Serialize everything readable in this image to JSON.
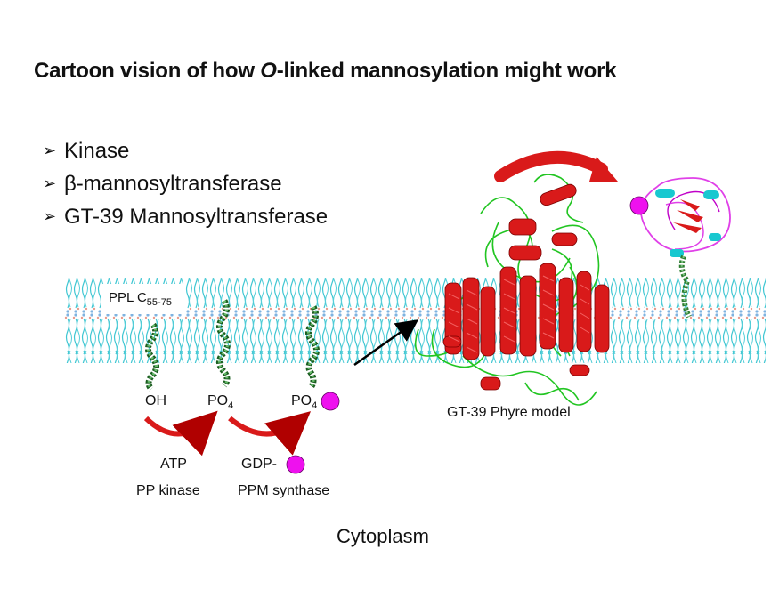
{
  "title": {
    "pre": "Cartoon vision of how ",
    "italic": "O",
    "post": "-linked mannosylation might work"
  },
  "bullets": [
    {
      "label": "Kinase"
    },
    {
      "label": "β-mannosyltransferase"
    },
    {
      "label": "GT-39 Mannosyltransferase"
    }
  ],
  "membrane_label": {
    "main": "PPL C",
    "sub": "55-75"
  },
  "lipid_heads": [
    {
      "main": "OH",
      "sub": ""
    },
    {
      "main": "PO",
      "sub": "4"
    },
    {
      "main": "PO",
      "sub": "4"
    }
  ],
  "reactions": [
    {
      "substrate": "ATP",
      "enzyme": "PP kinase"
    },
    {
      "substrate": "GDP-",
      "enzyme": "PPM synthase"
    }
  ],
  "model_label": "GT-39 Phyre model",
  "compartment_label": "Cytoplasm",
  "colors": {
    "mannose": "#ee11ee",
    "helix": "#d91a1a",
    "coil": "#22c522",
    "membrane_tail": "#3ec6d2",
    "lipid_chain": "#2e7d32",
    "loop_magenta": "#e040e8",
    "cyan_domain": "#18c8d0"
  }
}
